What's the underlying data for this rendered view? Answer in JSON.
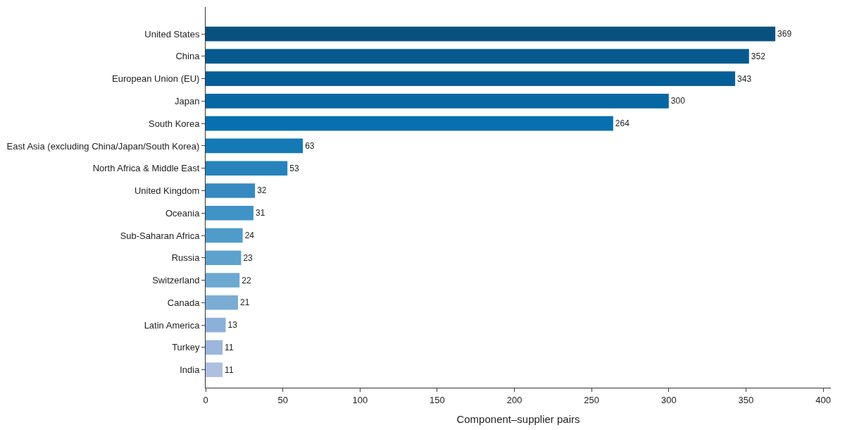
{
  "chart_data": {
    "type": "bar",
    "orientation": "horizontal",
    "xlabel": "Component–supplier pairs",
    "categories": [
      "United States",
      "China",
      "European Union (EU)",
      "Japan",
      "South Korea",
      "East Asia (excluding China/Japan/South Korea)",
      "North Africa & Middle East",
      "United Kingdom",
      "Oceania",
      "Sub-Saharan Africa",
      "Russia",
      "Switzerland",
      "Canada",
      "Latin America",
      "Turkey",
      "India"
    ],
    "values": [
      369,
      352,
      343,
      300,
      264,
      63,
      53,
      32,
      31,
      24,
      23,
      22,
      21,
      13,
      11,
      11
    ],
    "colors": [
      "#08517f",
      "#07598e",
      "#075f98",
      "#0767a3",
      "#0870b0",
      "#1579b5",
      "#2683bb",
      "#3689c1",
      "#3f93c6",
      "#4f9bca",
      "#5da2cd",
      "#6da8d1",
      "#7badd4",
      "#8cb1d9",
      "#9cb6dc",
      "#aebfe0"
    ],
    "xlim": [
      0,
      405
    ],
    "xticks": [
      0,
      50,
      100,
      150,
      200,
      250,
      300,
      350,
      400
    ],
    "data_labels": true
  }
}
